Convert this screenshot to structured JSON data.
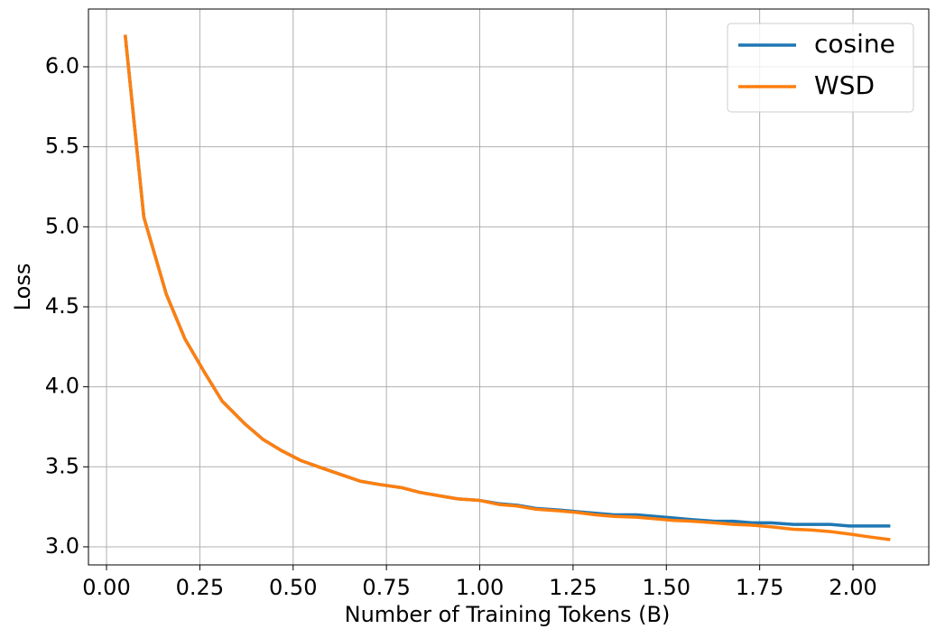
{
  "chart_data": {
    "type": "line",
    "x_label": "Number of Training Tokens (B)",
    "y_label": "Loss",
    "x": [
      0.05,
      0.1,
      0.16,
      0.21,
      0.26,
      0.31,
      0.37,
      0.42,
      0.47,
      0.52,
      0.58,
      0.63,
      0.68,
      0.73,
      0.79,
      0.84,
      0.89,
      0.94,
      1.0,
      1.05,
      1.1,
      1.15,
      1.21,
      1.26,
      1.31,
      1.36,
      1.42,
      1.47,
      1.52,
      1.57,
      1.63,
      1.68,
      1.73,
      1.78,
      1.84,
      1.89,
      1.94,
      1.99,
      2.05,
      2.1
    ],
    "series": [
      {
        "name": "cosine",
        "color": "#1f77b4",
        "values": [
          6.2,
          5.06,
          4.58,
          4.3,
          4.1,
          3.91,
          3.77,
          3.67,
          3.6,
          3.54,
          3.49,
          3.45,
          3.41,
          3.39,
          3.37,
          3.34,
          3.32,
          3.3,
          3.29,
          3.27,
          3.26,
          3.24,
          3.23,
          3.22,
          3.21,
          3.2,
          3.2,
          3.19,
          3.18,
          3.17,
          3.16,
          3.16,
          3.15,
          3.15,
          3.14,
          3.14,
          3.14,
          3.13,
          3.13,
          3.13
        ]
      },
      {
        "name": "WSD",
        "color": "#ff7f0e",
        "values": [
          6.2,
          5.06,
          4.58,
          4.3,
          4.1,
          3.91,
          3.77,
          3.67,
          3.6,
          3.54,
          3.49,
          3.45,
          3.41,
          3.39,
          3.37,
          3.34,
          3.32,
          3.3,
          3.29,
          3.265,
          3.255,
          3.235,
          3.225,
          3.215,
          3.2,
          3.19,
          3.185,
          3.175,
          3.165,
          3.16,
          3.15,
          3.14,
          3.135,
          3.125,
          3.11,
          3.105,
          3.095,
          3.08,
          3.06,
          3.045
        ]
      }
    ],
    "xlim": [
      -0.0484,
      2.2031
    ],
    "xticks": [
      {
        "value": 0,
        "label": "0.00"
      },
      0.25,
      {
        "value": 0.5,
        "label": "0.50"
      },
      0.75,
      {
        "value": 1,
        "label": "1.00"
      },
      1.25,
      {
        "value": 1.5,
        "label": "1.50"
      },
      1.75,
      {
        "value": 2,
        "label": "2.00"
      }
    ],
    "ylim": [
      2.887,
      6.361
    ],
    "yticks": [
      {
        "value": 3,
        "label": "3.0"
      },
      3.5,
      {
        "value": 4,
        "label": "4.0"
      },
      4.5,
      {
        "value": 5,
        "label": "5.0"
      },
      5.5,
      {
        "value": 6,
        "label": "6.0"
      }
    ],
    "grid": true,
    "legend": "upper right"
  }
}
